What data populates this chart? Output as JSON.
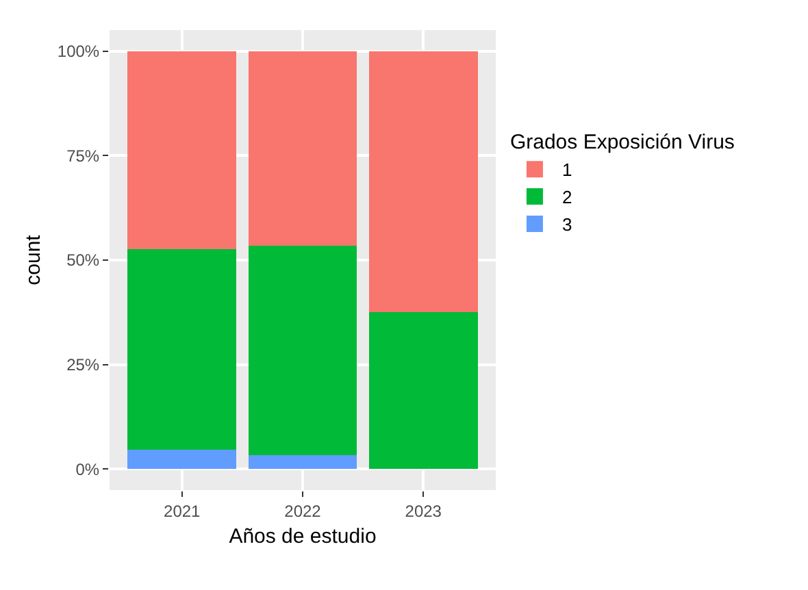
{
  "chart_data": {
    "type": "bar",
    "stacked": true,
    "xlabel": "Años de estudio",
    "ylabel": "count",
    "legend_title": "Grados Exposición Virus",
    "categories": [
      "2021",
      "2022",
      "2023"
    ],
    "series": [
      {
        "name": "3",
        "color": "#619cff",
        "values": [
          4.7,
          3.3,
          0
        ]
      },
      {
        "name": "2",
        "color": "#00ba38",
        "values": [
          48,
          50.1,
          37.5
        ]
      },
      {
        "name": "1",
        "color": "#f8766d",
        "values": [
          47.3,
          46.6,
          62.5
        ]
      }
    ],
    "ylim": [
      -5,
      105
    ],
    "yticks": [
      {
        "value": 0,
        "label": "0%"
      },
      {
        "value": 25,
        "label": "25%"
      },
      {
        "value": 50,
        "label": "50%"
      },
      {
        "value": 75,
        "label": "75%"
      },
      {
        "value": 100,
        "label": "100%"
      }
    ],
    "grid": true,
    "legend": "right"
  }
}
